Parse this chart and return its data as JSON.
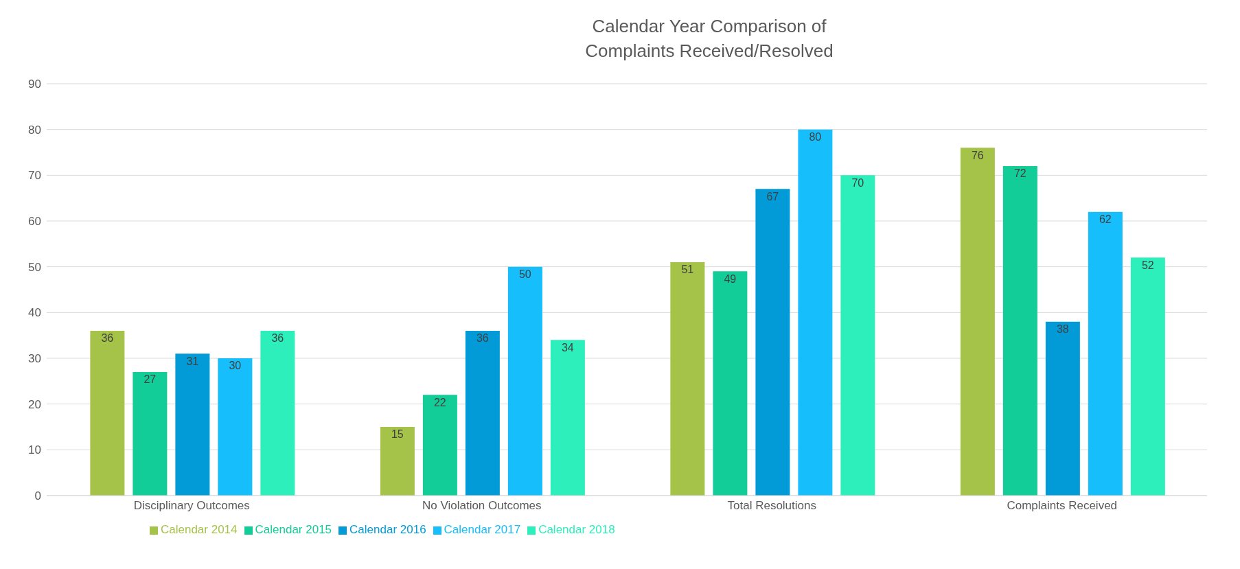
{
  "chart_data": {
    "type": "bar",
    "title": "Calendar Year Comparison of Complaints Received/Resolved",
    "categories": [
      "Disciplinary Outcomes",
      "No Violation Outcomes",
      "Total Resolutions",
      "Complaints Received"
    ],
    "series": [
      {
        "name": "Calendar 2014",
        "color": "#a5c249",
        "values": [
          36,
          15,
          51,
          76
        ]
      },
      {
        "name": "Calendar 2015",
        "color": "#12cd97",
        "values": [
          27,
          22,
          49,
          72
        ]
      },
      {
        "name": "Calendar 2016",
        "color": "#039bd7",
        "values": [
          31,
          36,
          67,
          38
        ]
      },
      {
        "name": "Calendar 2017",
        "color": "#16befb",
        "values": [
          30,
          50,
          80,
          62
        ]
      },
      {
        "name": "Calendar 2018",
        "color": "#2cefbb",
        "values": [
          36,
          34,
          70,
          52
        ]
      }
    ],
    "ylim": [
      0,
      90
    ],
    "yticks": [
      0,
      10,
      20,
      30,
      40,
      50,
      60,
      70,
      80,
      90
    ],
    "grid": "y",
    "legend": "bottom",
    "data_labels": true
  }
}
